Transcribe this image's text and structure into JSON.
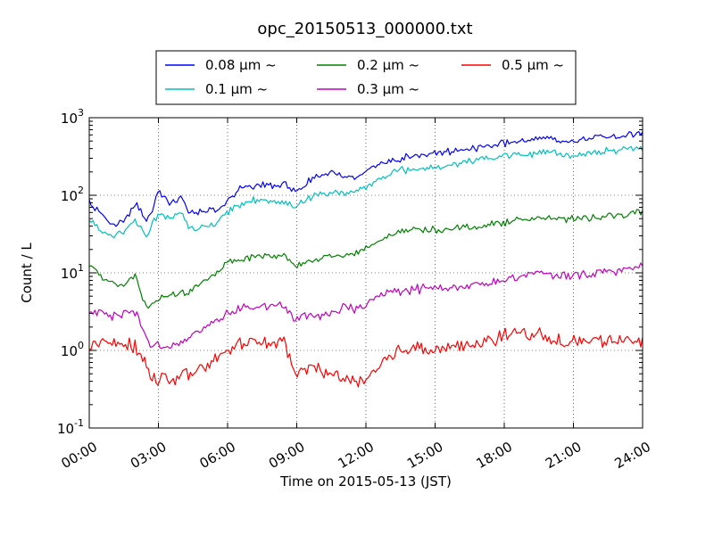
{
  "chart_data": {
    "type": "line",
    "title": "opc_20150513_000000.txt",
    "xlabel": "Time on 2015-05-13 (JST)",
    "ylabel": "Count / L",
    "yscale": "log",
    "ylim": [
      0.1,
      1000
    ],
    "xlim_hours": [
      0,
      24
    ],
    "grid": true,
    "legend_position": "top-center",
    "xticks": [
      "00:00",
      "03:00",
      "06:00",
      "09:00",
      "12:00",
      "15:00",
      "18:00",
      "21:00",
      "24:00"
    ],
    "yticks": [
      {
        "base": "10",
        "exp": "-1",
        "value": 0.1
      },
      {
        "base": "10",
        "exp": "0",
        "value": 1
      },
      {
        "base": "10",
        "exp": "1",
        "value": 10
      },
      {
        "base": "10",
        "exp": "2",
        "value": 100
      },
      {
        "base": "10",
        "exp": "3",
        "value": 1000
      }
    ],
    "series": [
      {
        "name": "0.08 μm ~",
        "color": "#0000ff",
        "noise": 0.045,
        "x": [
          0,
          0.5,
          1,
          1.5,
          2,
          2.5,
          2.7,
          3,
          3.3,
          3.5,
          4,
          4.3,
          4.6,
          5,
          5.5,
          6,
          6.5,
          7,
          7.5,
          8,
          8.5,
          8.9,
          9,
          9.5,
          10,
          10.5,
          11,
          11.5,
          12,
          12.5,
          13,
          13.5,
          14,
          15,
          16,
          17,
          18,
          19,
          20,
          20.5,
          21,
          22,
          23,
          24
        ],
        "y": [
          80,
          60,
          40,
          45,
          80,
          45,
          60,
          110,
          90,
          75,
          95,
          60,
          58,
          60,
          65,
          85,
          120,
          130,
          140,
          130,
          140,
          110,
          120,
          150,
          190,
          200,
          180,
          170,
          200,
          250,
          280,
          300,
          330,
          340,
          380,
          420,
          470,
          500,
          580,
          480,
          500,
          560,
          590,
          620
        ]
      },
      {
        "name": "0.1 μm ~",
        "color": "#00bfbf",
        "noise": 0.045,
        "x": [
          0,
          0.5,
          1,
          1.5,
          2,
          2.5,
          2.7,
          3,
          3.3,
          3.5,
          4,
          4.3,
          4.6,
          5,
          5.5,
          6,
          6.5,
          7,
          7.5,
          8,
          8.5,
          8.9,
          9,
          9.5,
          10,
          10.5,
          11,
          11.5,
          12,
          12.5,
          13,
          13.5,
          14,
          15,
          16,
          17,
          18,
          19,
          20,
          20.5,
          21,
          22,
          23,
          24
        ],
        "y": [
          50,
          35,
          30,
          35,
          50,
          28,
          40,
          60,
          55,
          50,
          60,
          38,
          35,
          40,
          45,
          60,
          75,
          85,
          90,
          80,
          85,
          70,
          75,
          90,
          105,
          110,
          105,
          110,
          125,
          160,
          190,
          210,
          215,
          230,
          260,
          290,
          320,
          330,
          380,
          320,
          330,
          360,
          390,
          410
        ]
      },
      {
        "name": "0.2 μm ~",
        "color": "#008000",
        "noise": 0.045,
        "x": [
          0,
          0.5,
          1,
          1.5,
          2,
          2.5,
          2.7,
          3,
          3.5,
          4,
          4.5,
          5,
          5.5,
          6,
          6.5,
          7,
          7.5,
          8,
          8.5,
          8.9,
          9,
          9.5,
          10,
          10.5,
          11,
          11.5,
          12,
          12.5,
          13,
          13.5,
          14,
          15,
          16,
          17,
          18,
          19,
          20,
          20.5,
          21,
          22,
          23,
          24
        ],
        "y": [
          13,
          9,
          7,
          7,
          9,
          3.5,
          4,
          4.5,
          5,
          5.5,
          6,
          8,
          10,
          14,
          15,
          16,
          17,
          16,
          17,
          12,
          13,
          14,
          15,
          17,
          16,
          17,
          21,
          25,
          30,
          33,
          37,
          36,
          38,
          40,
          45,
          50,
          52,
          47,
          50,
          52,
          56,
          60
        ]
      },
      {
        "name": "0.3 μm ~",
        "color": "#bf00bf",
        "noise": 0.06,
        "x": [
          0,
          0.5,
          1,
          1.5,
          2,
          2.5,
          2.7,
          3,
          3.5,
          4,
          4.5,
          5,
          5.5,
          6,
          6.5,
          7,
          7.5,
          8,
          8.5,
          8.9,
          9,
          9.5,
          10,
          10.5,
          11,
          11.5,
          12,
          12.5,
          13,
          13.5,
          14,
          15,
          16,
          17,
          18,
          19,
          19.5,
          20,
          21,
          22,
          23,
          24
        ],
        "y": [
          3.5,
          3,
          2.7,
          3,
          3.2,
          1.4,
          1.1,
          1.2,
          1.1,
          1.3,
          1.5,
          2,
          2.5,
          3,
          3.5,
          3.7,
          3.6,
          3.7,
          3.8,
          2.4,
          2.6,
          2.8,
          2.7,
          3,
          3.5,
          3.4,
          4,
          5,
          5.5,
          6,
          6.2,
          6.3,
          6.5,
          7,
          8,
          9,
          11,
          9,
          9.5,
          10,
          11,
          12
        ]
      },
      {
        "name": "0.5 μm ~",
        "color": "#ff0000",
        "noise": 0.09,
        "x": [
          0,
          0.5,
          1,
          1.5,
          2,
          2.5,
          2.7,
          3,
          3.5,
          4,
          4.5,
          5,
          5.5,
          6,
          6.5,
          7,
          7.5,
          8,
          8.5,
          8.9,
          9,
          9.5,
          10,
          10.5,
          11,
          11.5,
          12,
          12.5,
          13,
          13.5,
          14,
          15,
          16,
          17,
          18,
          19,
          19.5,
          20,
          21,
          22,
          23,
          24
        ],
        "y": [
          1.1,
          1.2,
          1.3,
          1.1,
          1.2,
          0.6,
          0.45,
          0.45,
          0.4,
          0.45,
          0.5,
          0.6,
          0.8,
          1.1,
          1.2,
          1.3,
          1.2,
          1.3,
          1.2,
          0.5,
          0.55,
          0.6,
          0.55,
          0.5,
          0.45,
          0.4,
          0.4,
          0.6,
          0.8,
          1,
          1.1,
          1.1,
          1.1,
          1.2,
          1.6,
          1.6,
          1.7,
          1.3,
          1.3,
          1.3,
          1.4,
          1.4
        ]
      }
    ]
  }
}
